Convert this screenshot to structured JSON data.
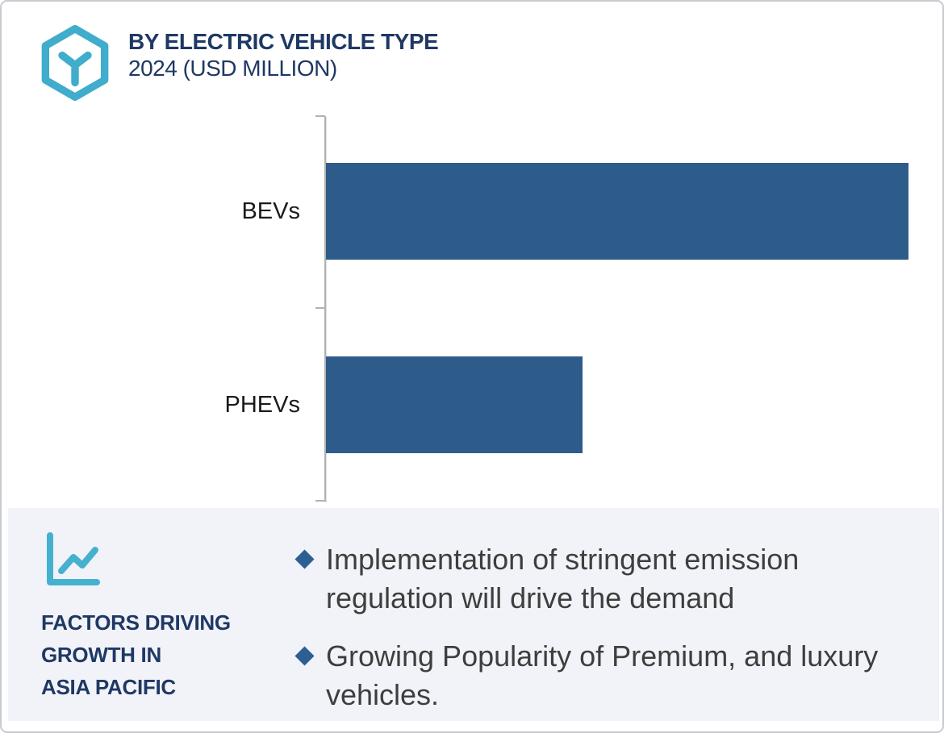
{
  "header": {
    "title": "BY ELECTRIC VEHICLE TYPE",
    "subtitle": "2024 (USD MILLION)"
  },
  "chart_data": {
    "type": "bar",
    "orientation": "horizontal",
    "title": "BY ELECTRIC VEHICLE TYPE",
    "subtitle": "2024 (USD MILLION)",
    "categories": [
      "BEVs",
      "PHEVs"
    ],
    "values": [
      100,
      44
    ],
    "values_note": "no numeric axis or data labels shown; values are relative bar lengths (BEVs bar = 100, PHEVs ≈ 44% of BEVs)",
    "xlabel": "",
    "ylabel": "",
    "bar_color": "#2e5c8a",
    "axis_ticks_shown": 3,
    "gridlines": false,
    "legend": false
  },
  "factors": {
    "heading_line1": "FACTORS DRIVING",
    "heading_line2": "GROWTH IN",
    "heading_line3": "ASIA PACIFIC",
    "bullets": [
      {
        "line1": "Implementation of stringent emission",
        "line2": "regulation will drive the demand",
        "full_text": "Implementation of stringent emission regulation will drive the demand"
      },
      {
        "line1": "Growing Popularity of Premium, and luxury",
        "line2": "vehicles.",
        "full_text": "Growing Popularity of Premium, and luxury vehicles."
      }
    ]
  },
  "icons": {
    "logo": "hexagon-cube-icon",
    "panel": "line-chart-icon"
  },
  "colors": {
    "accent_teal": "#3fadcb",
    "navy": "#1f3864",
    "bar_blue": "#2e5c8a",
    "diamond_blue": "#2e5f94",
    "panel_background": "#f1f3f8",
    "body_text": "#3e3e3e",
    "axis_gray": "#b2b2b2"
  }
}
